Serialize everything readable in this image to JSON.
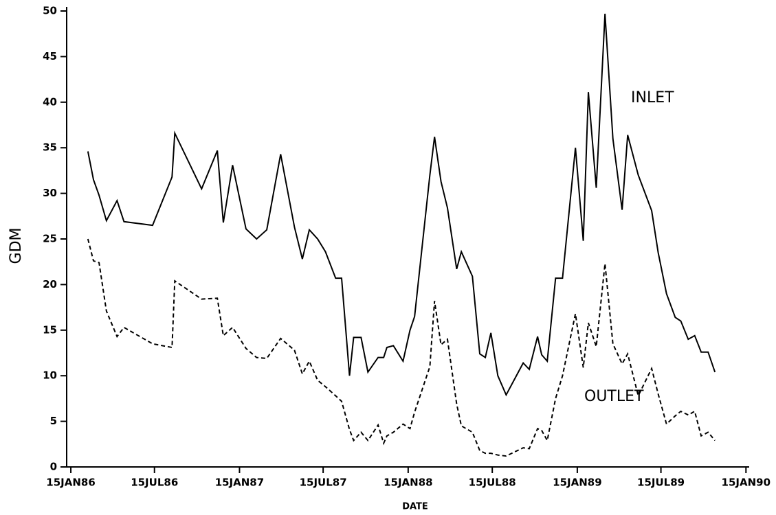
{
  "chart_data": {
    "type": "line",
    "x_label": "DATE",
    "y_label": "GDM",
    "annotations": [
      "INLET",
      "OUTLET"
    ],
    "x": [
      "1986-02-21",
      "1986-03-05",
      "1986-03-17",
      "1986-04-02",
      "1986-04-25",
      "1986-05-10",
      "1986-07-11",
      "1986-08-22",
      "1986-08-28",
      "1986-10-25",
      "1986-11-28",
      "1986-12-11",
      "1986-12-31",
      "1987-01-29",
      "1987-02-21",
      "1987-03-15",
      "1987-04-14",
      "1987-05-14",
      "1987-05-31",
      "1987-06-15",
      "1987-07-03",
      "1987-07-20",
      "1987-08-11",
      "1987-08-24",
      "1987-09-10",
      "1987-09-19",
      "1987-10-05",
      "1987-10-20",
      "1987-11-11",
      "1987-11-23",
      "1987-11-30",
      "1987-12-14",
      "1988-01-04",
      "1988-01-19",
      "1988-01-29",
      "1988-03-02",
      "1988-03-12",
      "1988-03-26",
      "1988-04-09",
      "1988-04-29",
      "1988-05-09",
      "1988-06-02",
      "1988-06-18",
      "1988-06-30",
      "1988-07-12",
      "1988-07-27",
      "1988-08-14",
      "1988-09-20",
      "1988-10-03",
      "1988-10-21",
      "1988-10-30",
      "1988-11-11",
      "1988-11-29",
      "1988-12-14",
      "1989-01-11",
      "1989-01-28",
      "1989-02-08",
      "1989-02-25",
      "1989-03-16",
      "1989-04-02",
      "1989-04-22",
      "1989-05-04",
      "1989-05-27",
      "1989-06-25",
      "1989-07-09",
      "1989-07-27",
      "1989-08-15",
      "1989-08-27",
      "1989-09-12",
      "1989-09-26",
      "1989-10-10",
      "1989-10-25",
      "1989-11-09"
    ],
    "series": [
      {
        "name": "INLET",
        "color": "#000000",
        "style": "solid",
        "values": [
          34.6,
          31.5,
          29.8,
          27,
          29.2,
          26.9,
          26.5,
          31.8,
          36.6,
          30.5,
          34.7,
          26.8,
          33.1,
          26.1,
          25,
          26,
          34.3,
          26.3,
          22.8,
          26,
          25,
          23.6,
          20.7,
          20.7,
          10,
          14.2,
          14.2,
          10.4,
          12,
          12,
          13.1,
          13.3,
          11.6,
          15,
          16.5,
          32,
          36.2,
          31.3,
          28.4,
          21.7,
          23.6,
          20.9,
          12.4,
          12,
          14.7,
          10,
          7.9,
          11.4,
          10.7,
          14.3,
          12.3,
          11.6,
          20.7,
          20.7,
          35,
          24.8,
          41.1,
          30.6,
          49.7,
          36,
          28.2,
          36.4,
          32,
          28.1,
          23.5,
          19,
          16.4,
          16,
          14,
          14.4,
          12.6,
          12.6,
          10.4
        ]
      },
      {
        "name": "OUTLET",
        "color": "#000000",
        "style": "dashed",
        "values": [
          25,
          22.6,
          22.4,
          17.1,
          14.3,
          15.3,
          13.5,
          13.1,
          20.4,
          18.4,
          18.5,
          14.4,
          15.3,
          13,
          12,
          11.9,
          14.1,
          12.8,
          10.2,
          11.6,
          9.5,
          8.8,
          7.8,
          7.2,
          4.1,
          2.9,
          3.8,
          2.9,
          4.6,
          2.6,
          3.4,
          3.8,
          4.7,
          4.2,
          6,
          11,
          18.2,
          13.4,
          14,
          6.9,
          4.5,
          3.8,
          1.8,
          1.5,
          1.5,
          1.3,
          1.2,
          2.1,
          2,
          4.2,
          4,
          2.9,
          7.5,
          10,
          16.8,
          10.9,
          15.8,
          13.2,
          22.3,
          13.5,
          11.3,
          12.4,
          7.8,
          10.8,
          8,
          4.7,
          5.6,
          6.1,
          5.7,
          6.1,
          3.4,
          3.8,
          2.9
        ]
      }
    ],
    "xlim": [
      "1986-01-06",
      "1990-01-22"
    ],
    "xticks": [
      {
        "value": "1986-01-15",
        "label": "15JAN86"
      },
      {
        "value": "1986-07-15",
        "label": "15JUL86"
      },
      {
        "value": "1987-01-15",
        "label": "15JAN87"
      },
      {
        "value": "1987-07-15",
        "label": "15JUL87"
      },
      {
        "value": "1988-01-15",
        "label": "15JAN88"
      },
      {
        "value": "1988-07-15",
        "label": "15JUL88"
      },
      {
        "value": "1989-01-15",
        "label": "15JAN89"
      },
      {
        "value": "1989-07-15",
        "label": "15JUL89"
      },
      {
        "value": "1990-01-15",
        "label": "15JAN90"
      }
    ],
    "ylim": [
      0,
      50
    ],
    "yticks": [
      0,
      5,
      10,
      15,
      20,
      25,
      30,
      35,
      40,
      45,
      50
    ],
    "grid": false
  }
}
